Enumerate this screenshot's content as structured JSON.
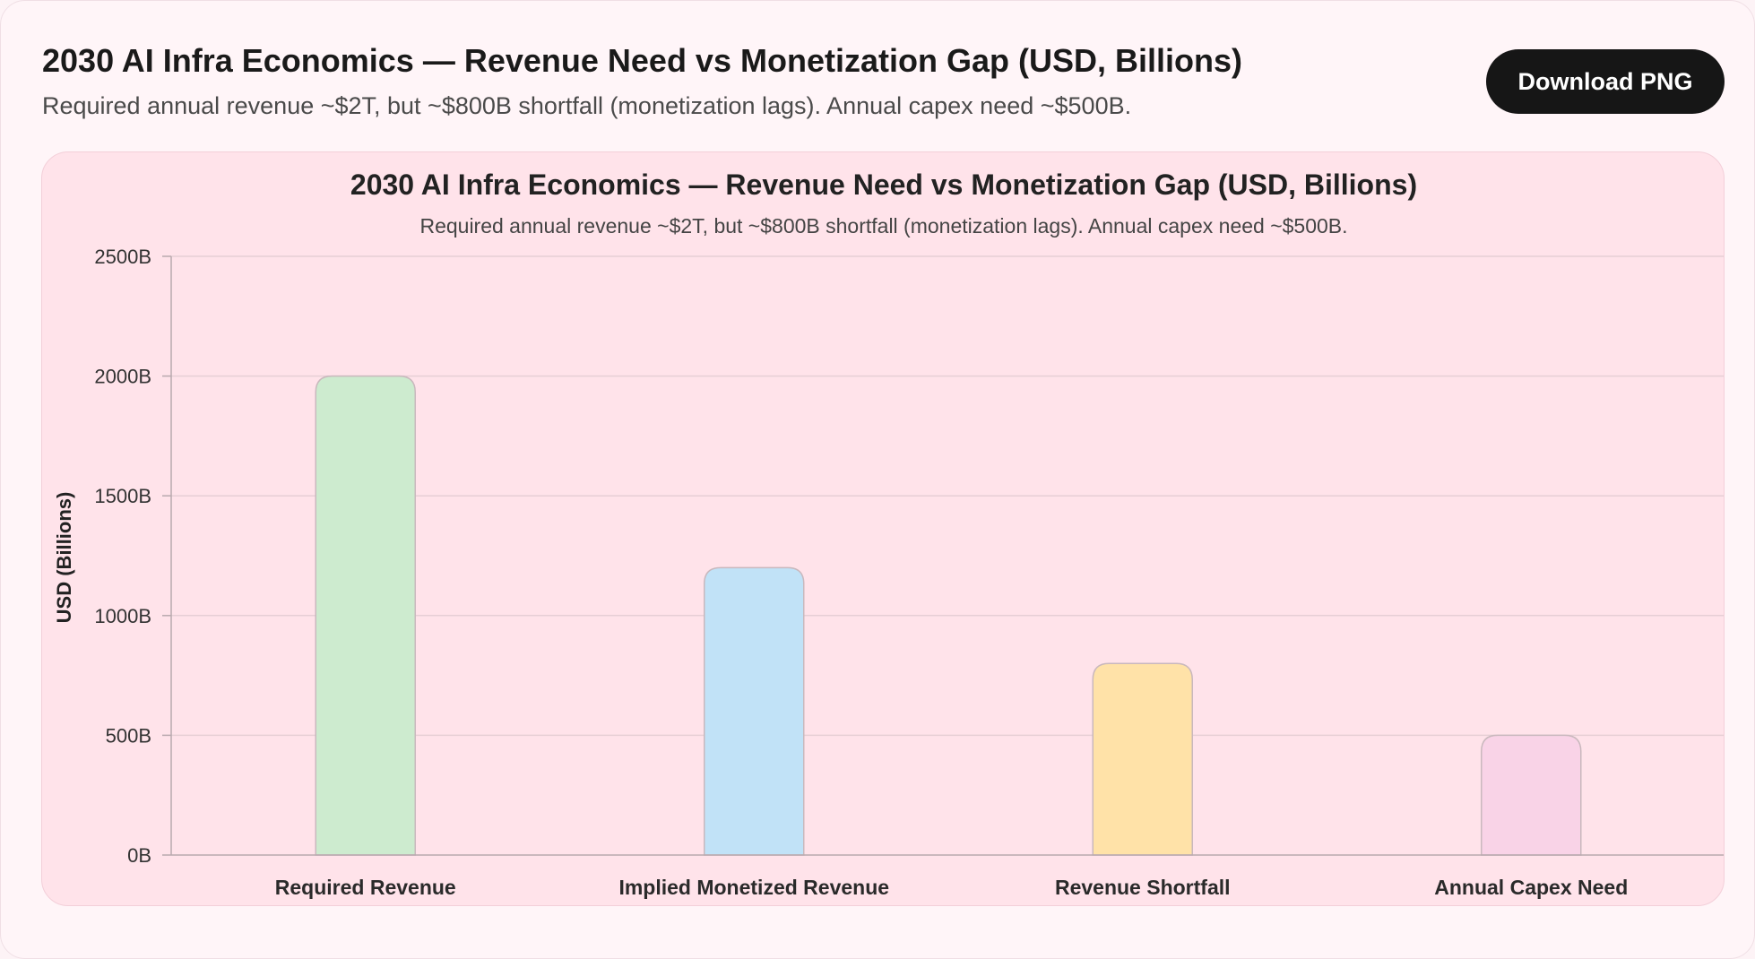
{
  "header": {
    "title": "2030 AI Infra Economics — Revenue Need vs Monetization Gap (USD, Billions)",
    "subtitle": "Required annual revenue ~$2T, but ~$800B shortfall (monetization lags). Annual capex need ~$500B.",
    "download_label": "Download PNG"
  },
  "colors": {
    "page_bg": "#fff5f8",
    "panel_bg": "#ffe3ea",
    "bar_stroke": "#c9b8bd",
    "grid": "#e6cfd5"
  },
  "chart_data": {
    "type": "bar",
    "title": "2030 AI Infra Economics — Revenue Need vs Monetization Gap (USD, Billions)",
    "subtitle": "Required annual revenue ~$2T, but ~$800B shortfall (monetization lags). Annual capex need ~$500B.",
    "ylabel": "USD (Billions)",
    "xlabel": "",
    "ylim": [
      0,
      2500
    ],
    "yticks": [
      0,
      500,
      1000,
      1500,
      2000,
      2500
    ],
    "ytick_suffix": "B",
    "grid": true,
    "categories": [
      "Required Revenue",
      "Implied Monetized Revenue",
      "Revenue Shortfall",
      "Annual Capex Need"
    ],
    "values": [
      2000,
      1200,
      800,
      500
    ],
    "bar_colors": [
      "#cdebcf",
      "#c1e2f7",
      "#ffe2a8",
      "#f9d3e7"
    ]
  }
}
